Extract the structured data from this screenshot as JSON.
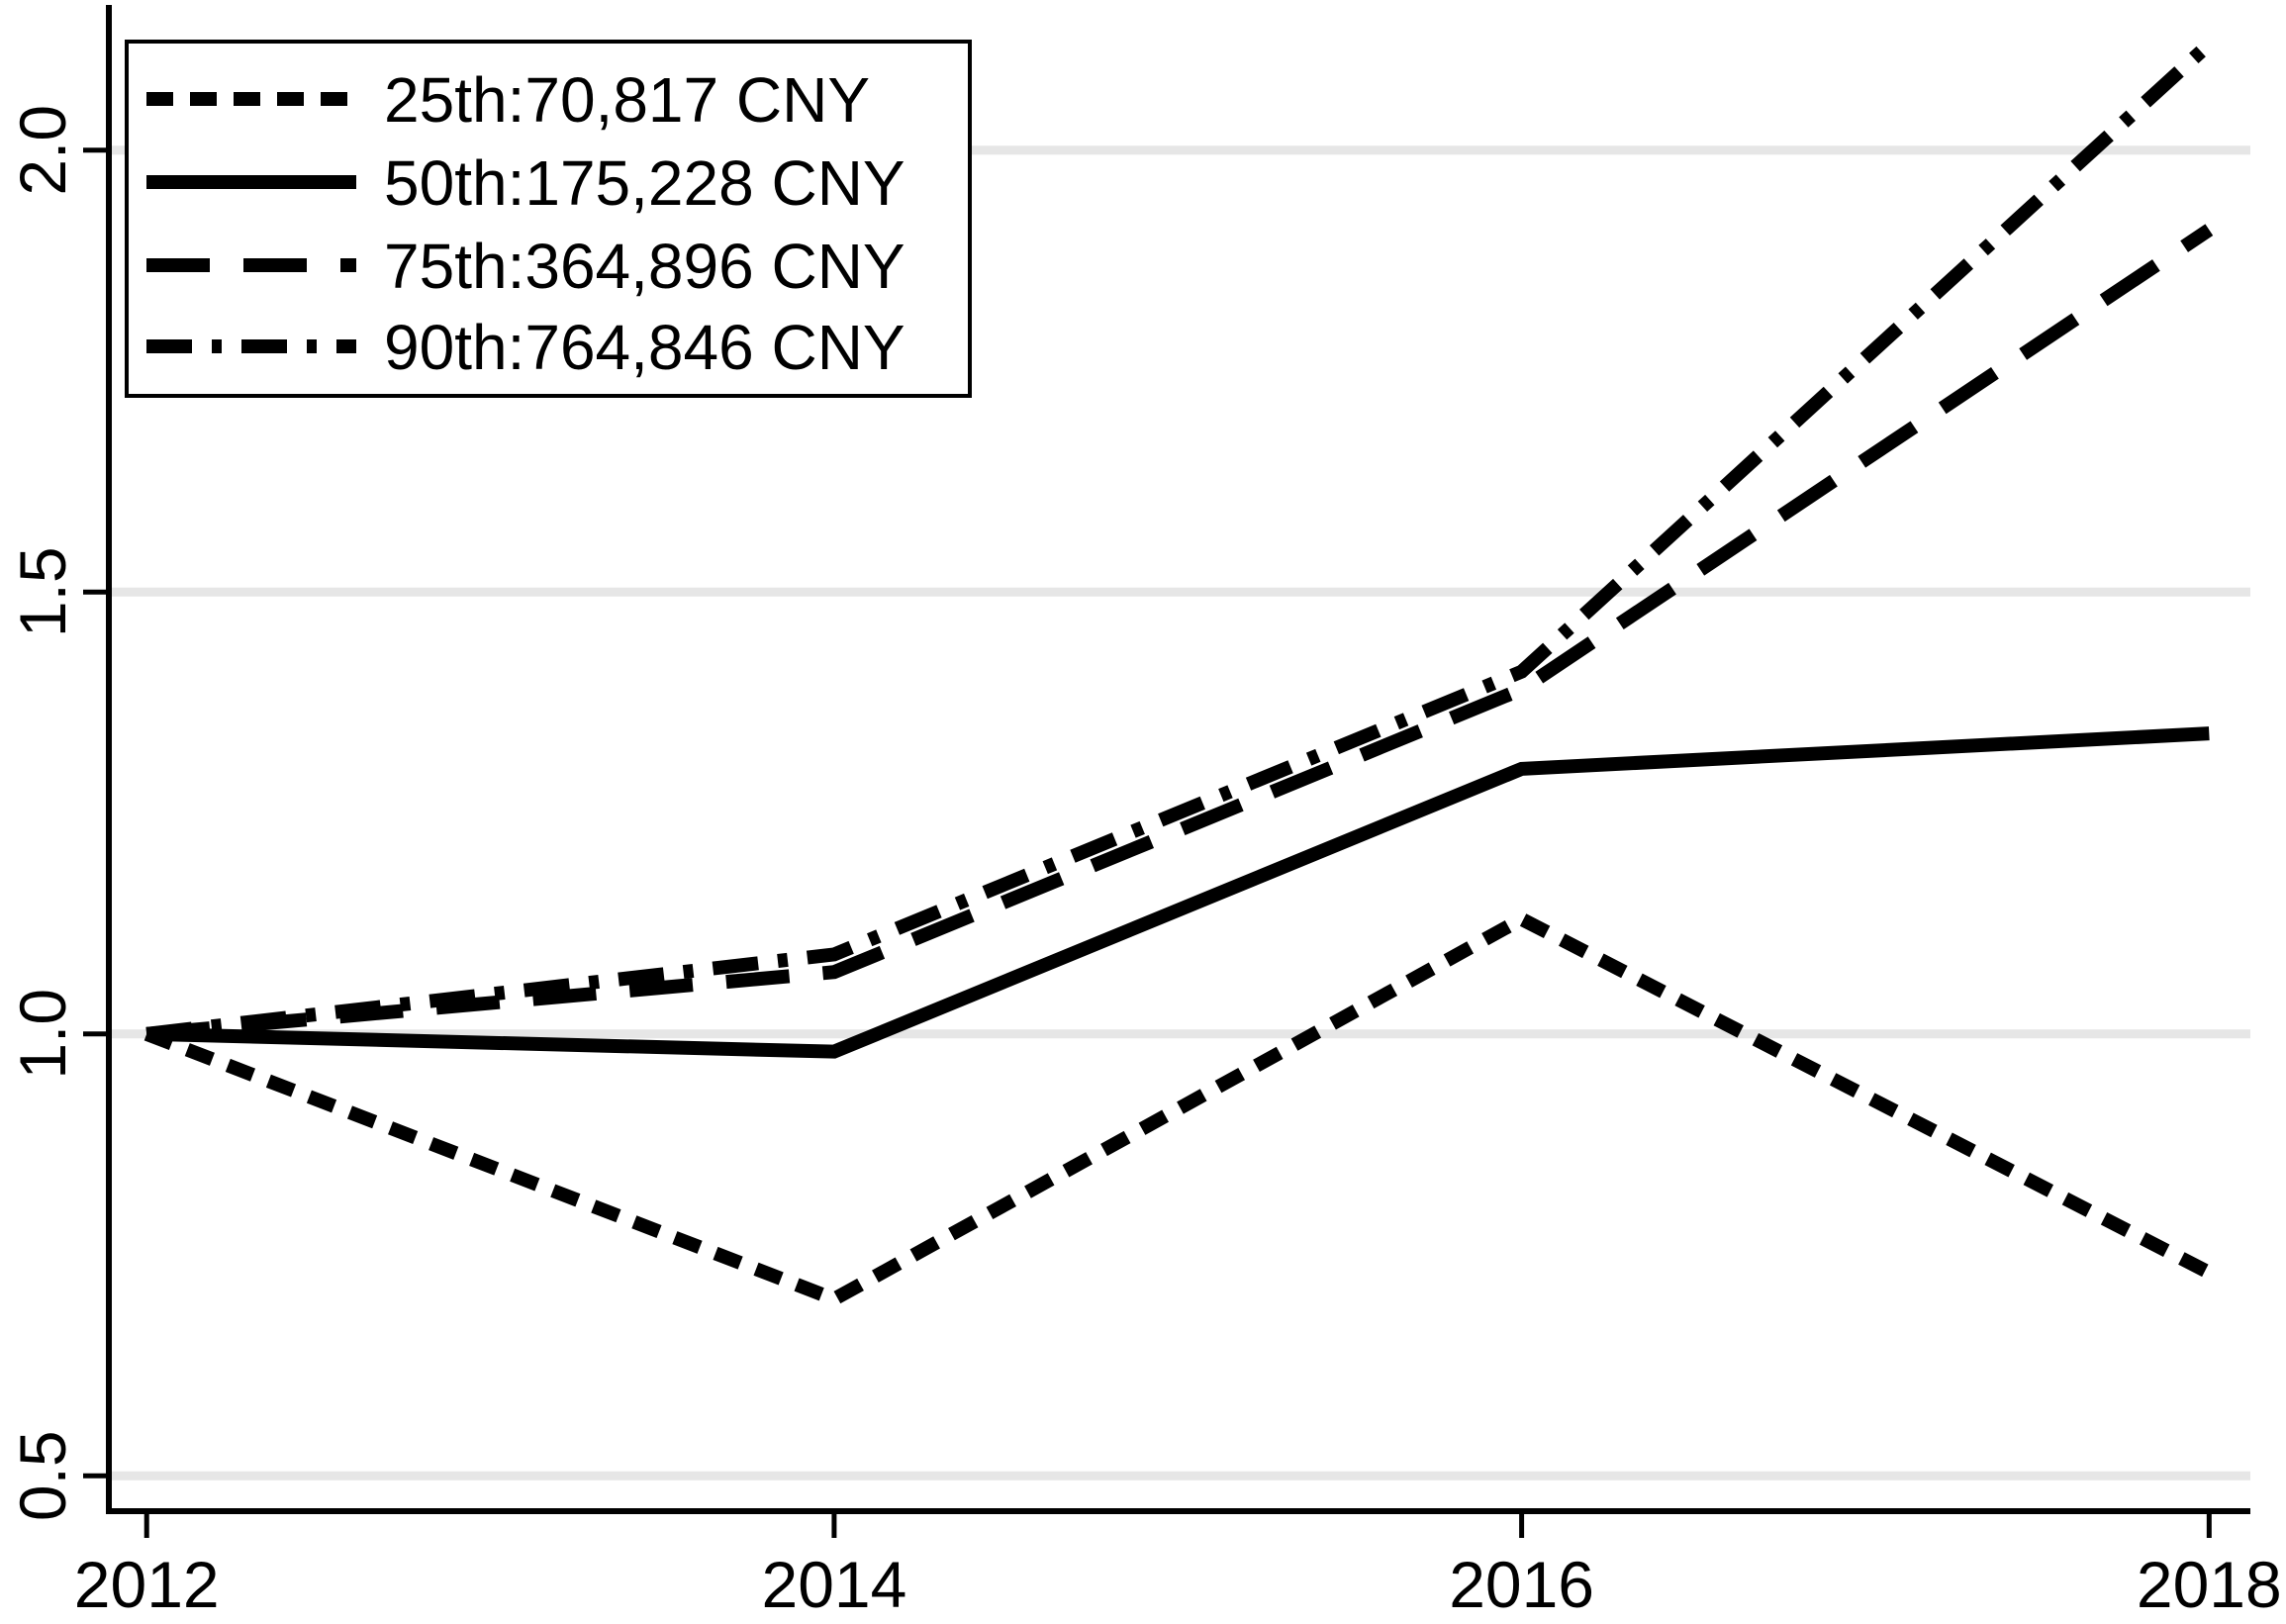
{
  "chart_data": {
    "type": "line",
    "x": [
      2012,
      2014,
      2016,
      2018
    ],
    "x_tick_labels": [
      "2012",
      "2014",
      "2016",
      "2018"
    ],
    "y_tick_values": [
      0.5,
      1.0,
      1.5,
      2.0
    ],
    "y_tick_labels": [
      "0.5",
      "1.0",
      "1.5",
      "2.0"
    ],
    "xlim": [
      2011.89,
      2018.12
    ],
    "ylim": [
      0.46,
      2.17
    ],
    "grid": "horizontal-gridlines-at-y-ticks",
    "legend_position": "top-left",
    "series": [
      {
        "name": "25th:70,817 CNY",
        "percentile": "25th",
        "base_income_cny": "70,817",
        "line_style": "dotted",
        "values": [
          1.0,
          0.7,
          1.13,
          0.73
        ]
      },
      {
        "name": "50th:175,228 CNY",
        "percentile": "50th",
        "base_income_cny": "175,228",
        "line_style": "solid",
        "values": [
          1.0,
          0.98,
          1.3,
          1.34
        ]
      },
      {
        "name": "75th:364,896 CNY",
        "percentile": "75th",
        "base_income_cny": "364,896",
        "line_style": "longdash",
        "values": [
          1.0,
          1.07,
          1.39,
          1.91
        ]
      },
      {
        "name": "90th:764,846 CNY",
        "percentile": "90th",
        "base_income_cny": "764,846",
        "line_style": "dashdot",
        "values": [
          1.0,
          1.09,
          1.41,
          2.12
        ]
      }
    ],
    "colors": {
      "line": "#000000",
      "grid": "#e6e6e6",
      "axis": "#000000",
      "background": "#ffffff",
      "legend_border": "#000000"
    }
  }
}
